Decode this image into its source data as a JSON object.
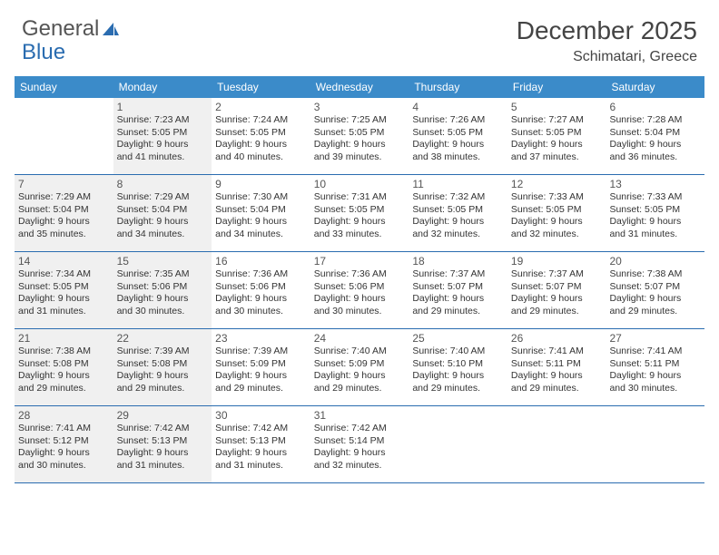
{
  "brand": {
    "part1": "General",
    "part2": "Blue"
  },
  "title": "December 2025",
  "location": "Schimatari, Greece",
  "header_bg": "#3b8bc9",
  "rule_color": "#2a6cb0",
  "shade_bg": "#f0f0f0",
  "dayNames": [
    "Sunday",
    "Monday",
    "Tuesday",
    "Wednesday",
    "Thursday",
    "Friday",
    "Saturday"
  ],
  "weeks": [
    [
      {
        "empty": true
      },
      {
        "n": "1",
        "shaded": true,
        "sr": "Sunrise: 7:23 AM",
        "ss": "Sunset: 5:05 PM",
        "d1": "Daylight: 9 hours",
        "d2": "and 41 minutes."
      },
      {
        "n": "2",
        "shaded": false,
        "sr": "Sunrise: 7:24 AM",
        "ss": "Sunset: 5:05 PM",
        "d1": "Daylight: 9 hours",
        "d2": "and 40 minutes."
      },
      {
        "n": "3",
        "shaded": false,
        "sr": "Sunrise: 7:25 AM",
        "ss": "Sunset: 5:05 PM",
        "d1": "Daylight: 9 hours",
        "d2": "and 39 minutes."
      },
      {
        "n": "4",
        "shaded": false,
        "sr": "Sunrise: 7:26 AM",
        "ss": "Sunset: 5:05 PM",
        "d1": "Daylight: 9 hours",
        "d2": "and 38 minutes."
      },
      {
        "n": "5",
        "shaded": false,
        "sr": "Sunrise: 7:27 AM",
        "ss": "Sunset: 5:05 PM",
        "d1": "Daylight: 9 hours",
        "d2": "and 37 minutes."
      },
      {
        "n": "6",
        "shaded": false,
        "sr": "Sunrise: 7:28 AM",
        "ss": "Sunset: 5:04 PM",
        "d1": "Daylight: 9 hours",
        "d2": "and 36 minutes."
      }
    ],
    [
      {
        "n": "7",
        "shaded": true,
        "sr": "Sunrise: 7:29 AM",
        "ss": "Sunset: 5:04 PM",
        "d1": "Daylight: 9 hours",
        "d2": "and 35 minutes."
      },
      {
        "n": "8",
        "shaded": true,
        "sr": "Sunrise: 7:29 AM",
        "ss": "Sunset: 5:04 PM",
        "d1": "Daylight: 9 hours",
        "d2": "and 34 minutes."
      },
      {
        "n": "9",
        "shaded": false,
        "sr": "Sunrise: 7:30 AM",
        "ss": "Sunset: 5:04 PM",
        "d1": "Daylight: 9 hours",
        "d2": "and 34 minutes."
      },
      {
        "n": "10",
        "shaded": false,
        "sr": "Sunrise: 7:31 AM",
        "ss": "Sunset: 5:05 PM",
        "d1": "Daylight: 9 hours",
        "d2": "and 33 minutes."
      },
      {
        "n": "11",
        "shaded": false,
        "sr": "Sunrise: 7:32 AM",
        "ss": "Sunset: 5:05 PM",
        "d1": "Daylight: 9 hours",
        "d2": "and 32 minutes."
      },
      {
        "n": "12",
        "shaded": false,
        "sr": "Sunrise: 7:33 AM",
        "ss": "Sunset: 5:05 PM",
        "d1": "Daylight: 9 hours",
        "d2": "and 32 minutes."
      },
      {
        "n": "13",
        "shaded": false,
        "sr": "Sunrise: 7:33 AM",
        "ss": "Sunset: 5:05 PM",
        "d1": "Daylight: 9 hours",
        "d2": "and 31 minutes."
      }
    ],
    [
      {
        "n": "14",
        "shaded": true,
        "sr": "Sunrise: 7:34 AM",
        "ss": "Sunset: 5:05 PM",
        "d1": "Daylight: 9 hours",
        "d2": "and 31 minutes."
      },
      {
        "n": "15",
        "shaded": true,
        "sr": "Sunrise: 7:35 AM",
        "ss": "Sunset: 5:06 PM",
        "d1": "Daylight: 9 hours",
        "d2": "and 30 minutes."
      },
      {
        "n": "16",
        "shaded": false,
        "sr": "Sunrise: 7:36 AM",
        "ss": "Sunset: 5:06 PM",
        "d1": "Daylight: 9 hours",
        "d2": "and 30 minutes."
      },
      {
        "n": "17",
        "shaded": false,
        "sr": "Sunrise: 7:36 AM",
        "ss": "Sunset: 5:06 PM",
        "d1": "Daylight: 9 hours",
        "d2": "and 30 minutes."
      },
      {
        "n": "18",
        "shaded": false,
        "sr": "Sunrise: 7:37 AM",
        "ss": "Sunset: 5:07 PM",
        "d1": "Daylight: 9 hours",
        "d2": "and 29 minutes."
      },
      {
        "n": "19",
        "shaded": false,
        "sr": "Sunrise: 7:37 AM",
        "ss": "Sunset: 5:07 PM",
        "d1": "Daylight: 9 hours",
        "d2": "and 29 minutes."
      },
      {
        "n": "20",
        "shaded": false,
        "sr": "Sunrise: 7:38 AM",
        "ss": "Sunset: 5:07 PM",
        "d1": "Daylight: 9 hours",
        "d2": "and 29 minutes."
      }
    ],
    [
      {
        "n": "21",
        "shaded": true,
        "sr": "Sunrise: 7:38 AM",
        "ss": "Sunset: 5:08 PM",
        "d1": "Daylight: 9 hours",
        "d2": "and 29 minutes."
      },
      {
        "n": "22",
        "shaded": true,
        "sr": "Sunrise: 7:39 AM",
        "ss": "Sunset: 5:08 PM",
        "d1": "Daylight: 9 hours",
        "d2": "and 29 minutes."
      },
      {
        "n": "23",
        "shaded": false,
        "sr": "Sunrise: 7:39 AM",
        "ss": "Sunset: 5:09 PM",
        "d1": "Daylight: 9 hours",
        "d2": "and 29 minutes."
      },
      {
        "n": "24",
        "shaded": false,
        "sr": "Sunrise: 7:40 AM",
        "ss": "Sunset: 5:09 PM",
        "d1": "Daylight: 9 hours",
        "d2": "and 29 minutes."
      },
      {
        "n": "25",
        "shaded": false,
        "sr": "Sunrise: 7:40 AM",
        "ss": "Sunset: 5:10 PM",
        "d1": "Daylight: 9 hours",
        "d2": "and 29 minutes."
      },
      {
        "n": "26",
        "shaded": false,
        "sr": "Sunrise: 7:41 AM",
        "ss": "Sunset: 5:11 PM",
        "d1": "Daylight: 9 hours",
        "d2": "and 29 minutes."
      },
      {
        "n": "27",
        "shaded": false,
        "sr": "Sunrise: 7:41 AM",
        "ss": "Sunset: 5:11 PM",
        "d1": "Daylight: 9 hours",
        "d2": "and 30 minutes."
      }
    ],
    [
      {
        "n": "28",
        "shaded": true,
        "sr": "Sunrise: 7:41 AM",
        "ss": "Sunset: 5:12 PM",
        "d1": "Daylight: 9 hours",
        "d2": "and 30 minutes."
      },
      {
        "n": "29",
        "shaded": true,
        "sr": "Sunrise: 7:42 AM",
        "ss": "Sunset: 5:13 PM",
        "d1": "Daylight: 9 hours",
        "d2": "and 31 minutes."
      },
      {
        "n": "30",
        "shaded": false,
        "sr": "Sunrise: 7:42 AM",
        "ss": "Sunset: 5:13 PM",
        "d1": "Daylight: 9 hours",
        "d2": "and 31 minutes."
      },
      {
        "n": "31",
        "shaded": false,
        "sr": "Sunrise: 7:42 AM",
        "ss": "Sunset: 5:14 PM",
        "d1": "Daylight: 9 hours",
        "d2": "and 32 minutes."
      },
      {
        "empty": true
      },
      {
        "empty": true
      },
      {
        "empty": true
      }
    ]
  ]
}
